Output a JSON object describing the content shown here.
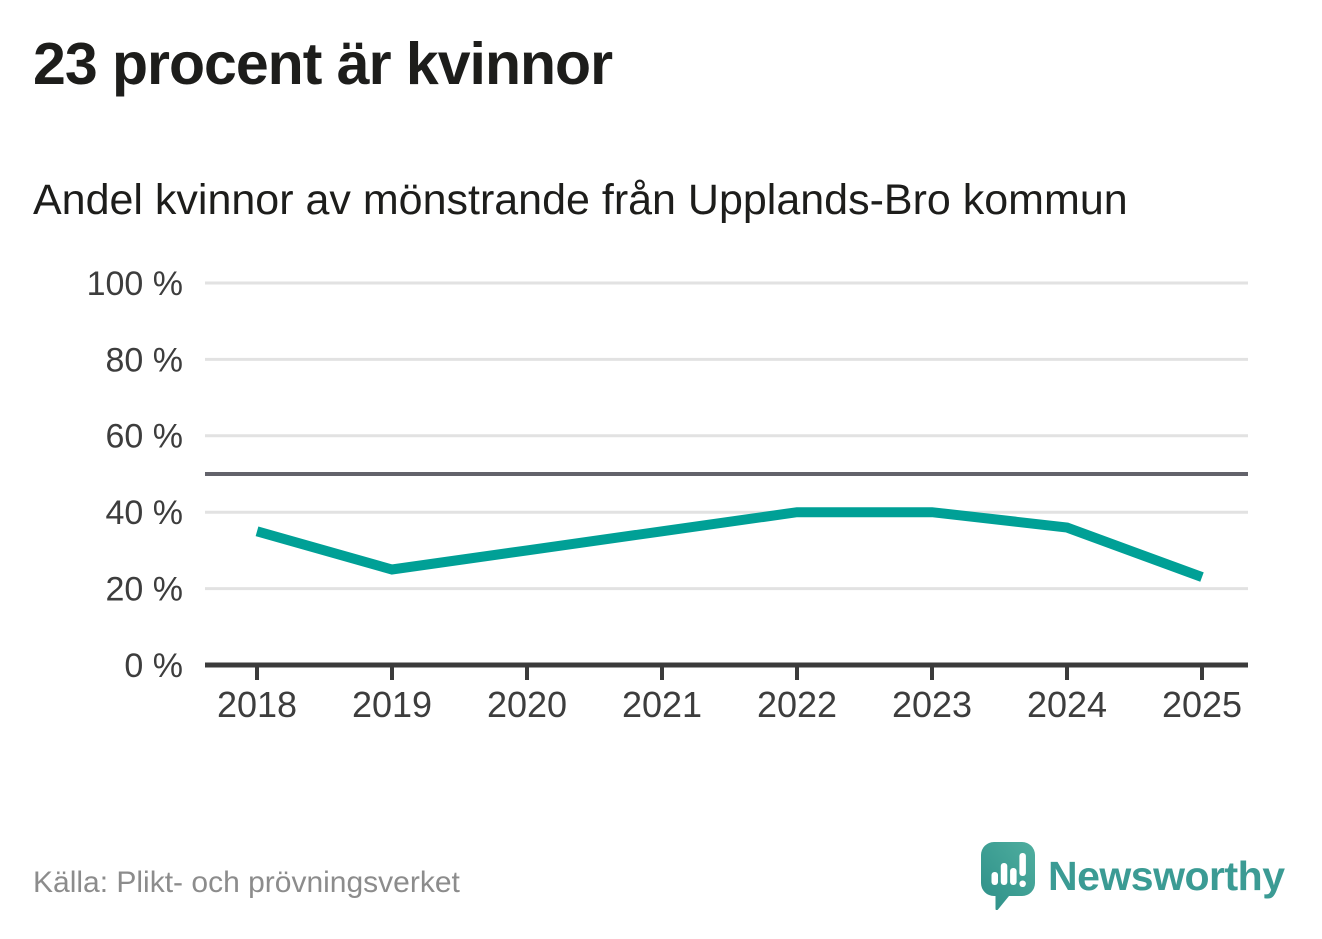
{
  "headline": "23 procent är kvinnor",
  "chart_data": {
    "type": "line",
    "title": "Andel kvinnor av mönstrande från Upplands-Bro kommun",
    "categories": [
      "2018",
      "2019",
      "2020",
      "2021",
      "2022",
      "2023",
      "2024",
      "2025"
    ],
    "values": [
      35,
      25,
      30,
      35,
      40,
      40,
      36,
      23
    ],
    "ylim": [
      0,
      100
    ],
    "yticks": [
      0,
      20,
      40,
      60,
      80,
      100
    ],
    "ytick_suffix": " %",
    "reference_line": 50,
    "grid": true,
    "legend": "none",
    "line_color": "#00a096",
    "grid_color": "#e2e2e2",
    "reference_line_color": "#63636b",
    "axis_color": "#3b3b3b",
    "tick_label_color": "#3d3d3d"
  },
  "source": "Källa: Plikt- och prövningsverket",
  "branding": {
    "wordmark": "Newsworthy",
    "icon": "speech-bubble-bar-chart-icon",
    "color": "#3b9b94",
    "icon_gradient": [
      "#2d8f88",
      "#4fae9f"
    ]
  }
}
